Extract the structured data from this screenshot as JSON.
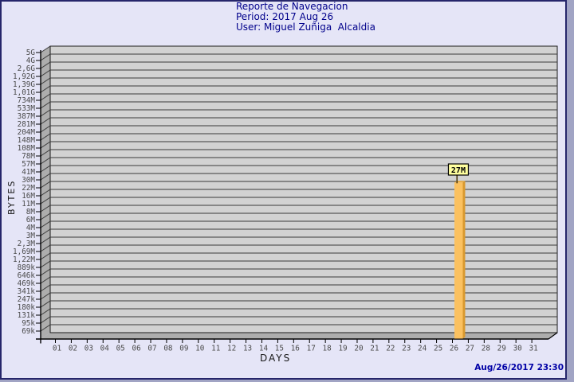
{
  "header": {
    "title": "Reporte de Navegacion",
    "period": "Period: 2017 Aug 26",
    "user": "User: Miguel Zuñiga  Alcaldia"
  },
  "footer": {
    "timestamp": "Aug/26/2017 23:30"
  },
  "chart_data": {
    "type": "bar",
    "title": "Reporte de Navegacion",
    "subtitle": [
      "Period: 2017 Aug 26",
      "User: Miguel Zuñiga  Alcaldia"
    ],
    "xlabel": "DAYS",
    "ylabel": "BYTES",
    "y_scale": "log",
    "grid": true,
    "legend": false,
    "y_range_bytes": [
      69000,
      5000000000
    ],
    "y_tick_labels": [
      "5G",
      "4G",
      "2,6G",
      "1,92G",
      "1,39G",
      "1,01G",
      "734M",
      "533M",
      "387M",
      "281M",
      "204M",
      "148M",
      "108M",
      "78M",
      "57M",
      "41M",
      "30M",
      "22M",
      "16M",
      "11M",
      "8M",
      "6M",
      "4M",
      "3M",
      "2,3M",
      "1,69M",
      "1,22M",
      "889k",
      "646k",
      "469k",
      "341k",
      "247k",
      "180k",
      "131k",
      "95k",
      "69k"
    ],
    "x_categories": [
      "01",
      "02",
      "03",
      "04",
      "05",
      "06",
      "07",
      "08",
      "09",
      "10",
      "11",
      "12",
      "13",
      "14",
      "15",
      "16",
      "17",
      "18",
      "19",
      "20",
      "21",
      "22",
      "23",
      "24",
      "25",
      "26",
      "27",
      "28",
      "29",
      "30",
      "31"
    ],
    "bars": [
      {
        "day": "26",
        "value": 27000000,
        "label": "27M"
      }
    ],
    "colors": {
      "page_bg": "#E5E5F7",
      "frame_border": "#26266B",
      "plot_face": "#D2D2D2",
      "plot_side": "#ADADAD",
      "gridline": "#3A3A3A",
      "axis": "#000000",
      "tick_text": "#4A4A4A",
      "title_text": "#00008B",
      "timestamp_text": "#0000A6",
      "bar_face": "#FBC160",
      "bar_side": "#D9992E",
      "bar_top": "#E5A83E",
      "callout_bg": "#FFFF9E",
      "callout_border": "#000000"
    }
  }
}
